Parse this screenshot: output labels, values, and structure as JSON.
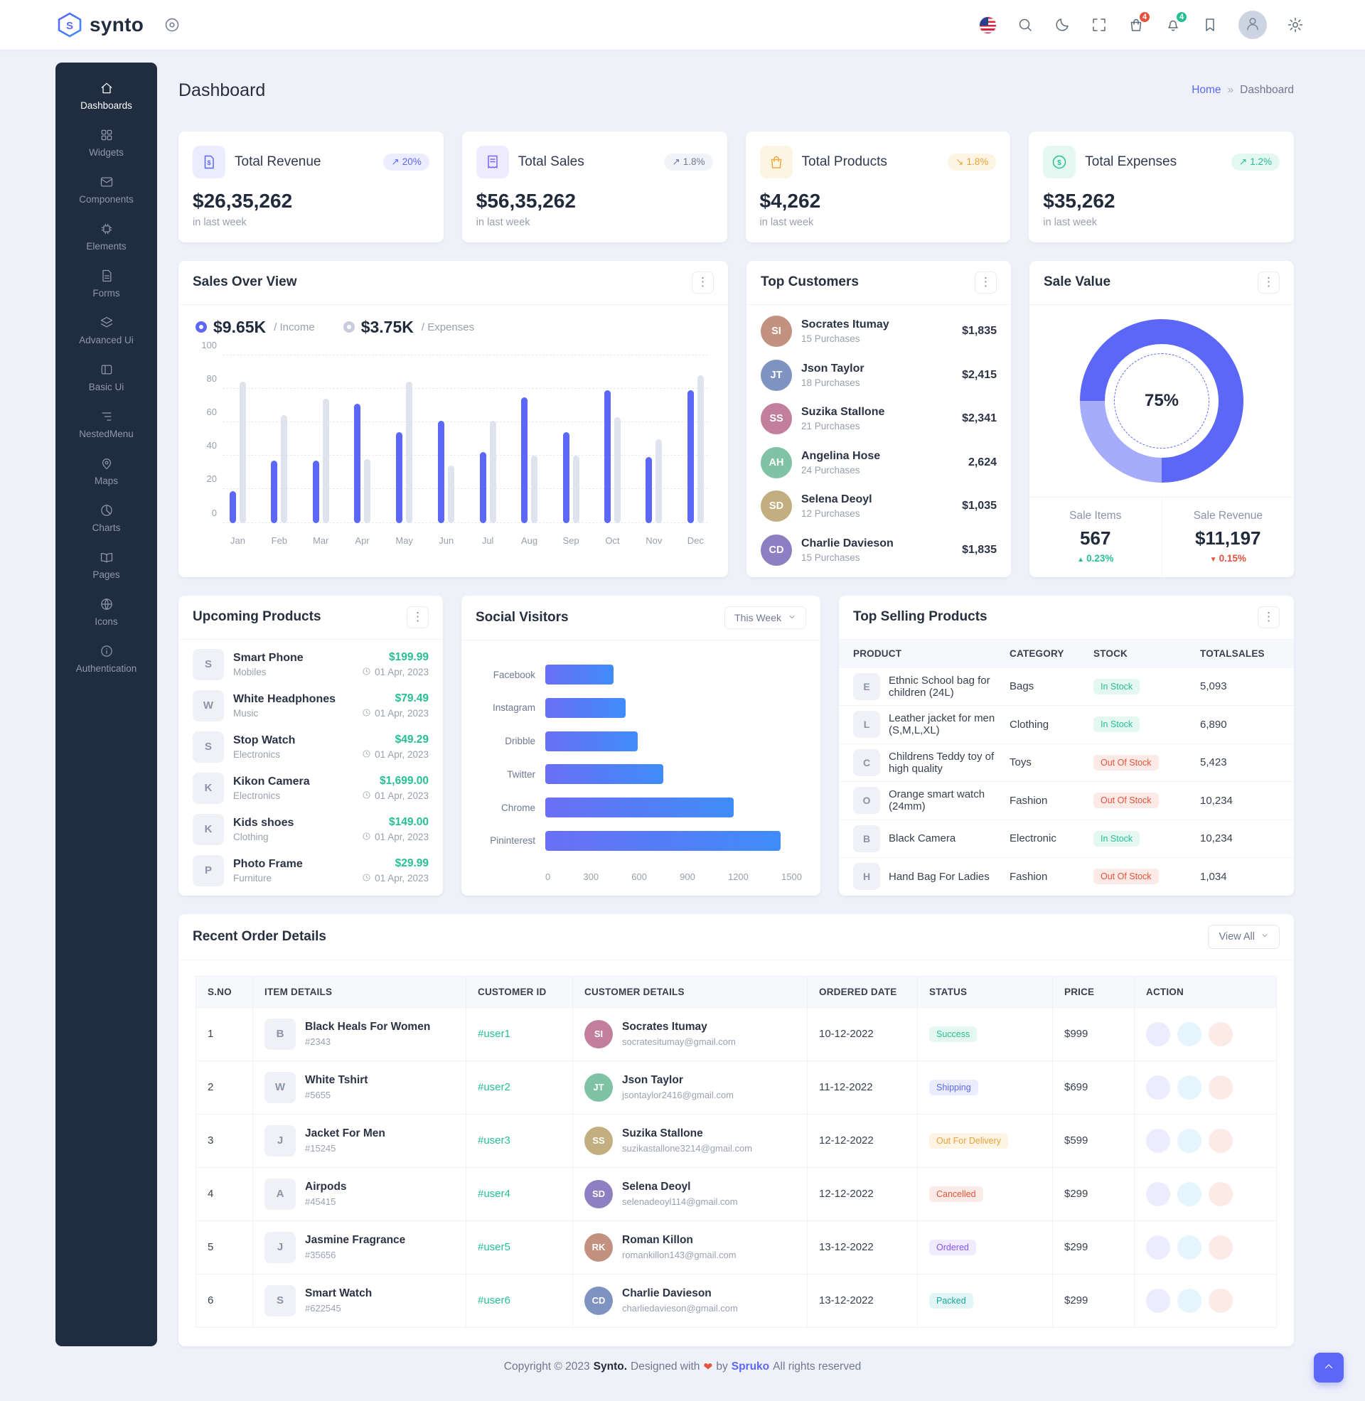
{
  "topbar": {
    "logo_text": "synto",
    "cart_badge": "4",
    "bell_badge": "4"
  },
  "sidebar": {
    "items": [
      {
        "label": "Dashboards",
        "icon": "home",
        "active": true
      },
      {
        "label": "Widgets",
        "icon": "widgets",
        "active": false
      },
      {
        "label": "Components",
        "icon": "components",
        "active": false
      },
      {
        "label": "Elements",
        "icon": "elements",
        "active": false
      },
      {
        "label": "Forms",
        "icon": "forms",
        "active": false
      },
      {
        "label": "Advanced Ui",
        "icon": "advanced-ui",
        "active": false
      },
      {
        "label": "Basic Ui",
        "icon": "basic-ui",
        "active": false
      },
      {
        "label": "NestedMenu",
        "icon": "nested-menu",
        "active": false
      },
      {
        "label": "Maps",
        "icon": "maps",
        "active": false
      },
      {
        "label": "Charts",
        "icon": "charts",
        "active": false
      },
      {
        "label": "Pages",
        "icon": "pages",
        "active": false
      },
      {
        "label": "Icons",
        "icon": "icons",
        "active": false
      },
      {
        "label": "Authentication",
        "icon": "authentication",
        "active": false
      }
    ]
  },
  "page": {
    "title": "Dashboard",
    "breadcrumb_home": "Home",
    "breadcrumb_sep": "»",
    "breadcrumb_current": "Dashboard"
  },
  "stats": [
    {
      "title": "Total Revenue",
      "value": "$26,35,262",
      "caption": "in last week",
      "change": "20%",
      "direction": "up",
      "icon": "revenue",
      "tone": "primary",
      "badge_tone": "primary"
    },
    {
      "title": "Total Sales",
      "value": "$56,35,262",
      "caption": "in last week",
      "change": "1.8%",
      "direction": "up",
      "icon": "sales",
      "tone": "secondary",
      "badge_tone": "gray"
    },
    {
      "title": "Total Products",
      "value": "$4,262",
      "caption": "in last week",
      "change": "1.8%",
      "direction": "down",
      "icon": "products",
      "tone": "warning",
      "badge_tone": "warning"
    },
    {
      "title": "Total Expenses",
      "value": "$35,262",
      "caption": "in last week",
      "change": "1.2%",
      "direction": "up",
      "icon": "expenses",
      "tone": "success",
      "badge_tone": "success"
    }
  ],
  "sales_overview": {
    "title": "Sales Over View",
    "income_value": "$9.65K",
    "income_label": "/ Income",
    "expenses_value": "$3.75K",
    "expenses_label": "/ Expenses"
  },
  "top_customers": {
    "title": "Top Customers",
    "items": [
      {
        "name": "Socrates Itumay",
        "purchases": "15 Purchases",
        "amount": "$1,835",
        "initials": "SI"
      },
      {
        "name": "Json Taylor",
        "purchases": "18 Purchases",
        "amount": "$2,415",
        "initials": "JT"
      },
      {
        "name": "Suzika Stallone",
        "purchases": "21 Purchases",
        "amount": "$2,341",
        "initials": "SS"
      },
      {
        "name": "Angelina Hose",
        "purchases": "24 Purchases",
        "amount": "2,624",
        "initials": "AH"
      },
      {
        "name": "Selena Deoyl",
        "purchases": "12 Purchases",
        "amount": "$1,035",
        "initials": "SD"
      },
      {
        "name": "Charlie Davieson",
        "purchases": "15 Purchases",
        "amount": "$1,835",
        "initials": "CD"
      }
    ]
  },
  "sale_value": {
    "title": "Sale Value",
    "percent_label": "75%",
    "items": [
      {
        "label": "Sale Items",
        "value": "567",
        "change": "0.23%",
        "direction": "up"
      },
      {
        "label": "Sale Revenue",
        "value": "$11,197",
        "change": "0.15%",
        "direction": "down"
      }
    ]
  },
  "upcoming_products": {
    "title": "Upcoming Products",
    "items": [
      {
        "name": "Smart Phone",
        "category": "Mobiles",
        "price": "$199.99",
        "date": "01 Apr, 2023"
      },
      {
        "name": "White Headphones",
        "category": "Music",
        "price": "$79.49",
        "date": "01 Apr, 2023"
      },
      {
        "name": "Stop Watch",
        "category": "Electronics",
        "price": "$49.29",
        "date": "01 Apr, 2023"
      },
      {
        "name": "Kikon Camera",
        "category": "Electronics",
        "price": "$1,699.00",
        "date": "01 Apr, 2023"
      },
      {
        "name": "Kids shoes",
        "category": "Clothing",
        "price": "$149.00",
        "date": "01 Apr, 2023"
      },
      {
        "name": "Photo Frame",
        "category": "Furniture",
        "price": "$29.99",
        "date": "01 Apr, 2023"
      }
    ]
  },
  "social_visitors": {
    "title": "Social Visitors",
    "filter_label": "This Week"
  },
  "top_selling": {
    "title": "Top Selling Products",
    "columns": [
      "PRODUCT",
      "CATEGORY",
      "STOCK",
      "TOTALSALES"
    ],
    "rows": [
      {
        "product": "Ethnic School bag for children (24L)",
        "category": "Bags",
        "stock": "In Stock",
        "stock_tone": "success",
        "total_sales": "5,093"
      },
      {
        "product": "Leather jacket for men (S,M,L,XL)",
        "category": "Clothing",
        "stock": "In Stock",
        "stock_tone": "success",
        "total_sales": "6,890"
      },
      {
        "product": "Childrens Teddy toy of high quality",
        "category": "Toys",
        "stock": "Out Of Stock",
        "stock_tone": "danger",
        "total_sales": "5,423"
      },
      {
        "product": "Orange smart watch (24mm)",
        "category": "Fashion",
        "stock": "Out Of Stock",
        "stock_tone": "danger",
        "total_sales": "10,234"
      },
      {
        "product": "Black Camera",
        "category": "Electronic",
        "stock": "In Stock",
        "stock_tone": "success",
        "total_sales": "10,234"
      },
      {
        "product": "Hand Bag For Ladies",
        "category": "Fashion",
        "stock": "Out Of Stock",
        "stock_tone": "danger",
        "total_sales": "1,034"
      }
    ]
  },
  "recent_orders": {
    "title": "Recent Order Details",
    "view_all_label": "View All",
    "columns": [
      "S.NO",
      "ITEM DETAILS",
      "CUSTOMER ID",
      "CUSTOMER DETAILS",
      "ORDERED DATE",
      "STATUS",
      "PRICE",
      "ACTION"
    ],
    "rows": [
      {
        "sno": "1",
        "item": "Black Heals For Women",
        "item_id": "#2343",
        "customer_id": "#user1",
        "customer": "Socrates Itumay",
        "initials": "SI",
        "email": "socratesitumay@gmail.com",
        "date": "10-12-2022",
        "status": "Success",
        "status_tone": "success",
        "price": "$999"
      },
      {
        "sno": "2",
        "item": "White Tshirt",
        "item_id": "#5655",
        "customer_id": "#user2",
        "customer": "Json Taylor",
        "initials": "JT",
        "email": "jsontaylor2416@gmail.com",
        "date": "11-12-2022",
        "status": "Shipping",
        "status_tone": "primary",
        "price": "$699"
      },
      {
        "sno": "3",
        "item": "Jacket For Men",
        "item_id": "#15245",
        "customer_id": "#user3",
        "customer": "Suzika Stallone",
        "initials": "SS",
        "email": "suzikastallone3214@gmail.com",
        "date": "12-12-2022",
        "status": "Out For Delivery",
        "status_tone": "warning",
        "price": "$599"
      },
      {
        "sno": "4",
        "item": "Airpods",
        "item_id": "#45415",
        "customer_id": "#user4",
        "customer": "Selena Deoyl",
        "initials": "SD",
        "email": "selenadeoyl114@gmail.com",
        "date": "12-12-2022",
        "status": "Cancelled",
        "status_tone": "danger",
        "price": "$299"
      },
      {
        "sno": "5",
        "item": "Jasmine Fragrance",
        "item_id": "#35656",
        "customer_id": "#user5",
        "customer": "Roman Killon",
        "initials": "RK",
        "email": "romankillon143@gmail.com",
        "date": "13-12-2022",
        "status": "Ordered",
        "status_tone": "purple",
        "price": "$299"
      },
      {
        "sno": "6",
        "item": "Smart Watch",
        "item_id": "#622545",
        "customer_id": "#user6",
        "customer": "Charlie Davieson",
        "initials": "CD",
        "email": "charliedavieson@gmail.com",
        "date": "13-12-2022",
        "status": "Packed",
        "status_tone": "teal",
        "price": "$299"
      }
    ]
  },
  "footer": {
    "prefix": "Copyright © 2023",
    "brand": "Synto.",
    "middle": "Designed with",
    "heart": "❤",
    "by": "by",
    "designer": "Spruko",
    "suffix": "All rights reserved"
  },
  "colors": {
    "primary": "#5c67f7",
    "success": "#26bf94",
    "danger": "#e6533c",
    "warning": "#f5b849",
    "info": "#3ba8ef",
    "purple": "#8655f5",
    "teal": "#16a8a0",
    "sidebar_bg": "#202c40",
    "body_bg": "#eff1f9"
  },
  "chart_data": [
    {
      "id": "sales-overview",
      "type": "bar",
      "title": "Sales Over View",
      "categories": [
        "Jan",
        "Feb",
        "Mar",
        "Apr",
        "May",
        "Jun",
        "Jul",
        "Aug",
        "Sep",
        "Oct",
        "Nov",
        "Dec"
      ],
      "series": [
        {
          "name": "Income",
          "color": "#5c67f7",
          "values": [
            19,
            37,
            37,
            71,
            54,
            61,
            42,
            75,
            54,
            79,
            39,
            79
          ]
        },
        {
          "name": "Expenses",
          "color": "#dfe3ee",
          "values": [
            84,
            64,
            74,
            38,
            84,
            34,
            61,
            40,
            40,
            63,
            50,
            88
          ]
        }
      ],
      "ylim": [
        0,
        100
      ],
      "yticks": [
        0,
        20,
        40,
        60,
        80,
        100
      ],
      "grid": "horizontal-dashed",
      "legend_position": "top-left"
    },
    {
      "id": "social-visitors",
      "type": "bar",
      "orientation": "horizontal",
      "title": "Social Visitors",
      "categories": [
        "Facebook",
        "Instagram",
        "Dribble",
        "Twitter",
        "Chrome",
        "Pininterest"
      ],
      "values": [
        400,
        470,
        540,
        690,
        1100,
        1375
      ],
      "xlim": [
        0,
        1500
      ],
      "xticks": [
        0,
        300,
        600,
        900,
        1200,
        1500
      ],
      "bar_gradient": [
        "#6a6ff8",
        "#3f8cfa"
      ]
    },
    {
      "id": "sale-value",
      "type": "pie",
      "title": "Sale Value",
      "values": [
        75,
        25
      ],
      "center_label": "75%",
      "colors": [
        "#5c67f7",
        "#a5acfb"
      ]
    }
  ]
}
